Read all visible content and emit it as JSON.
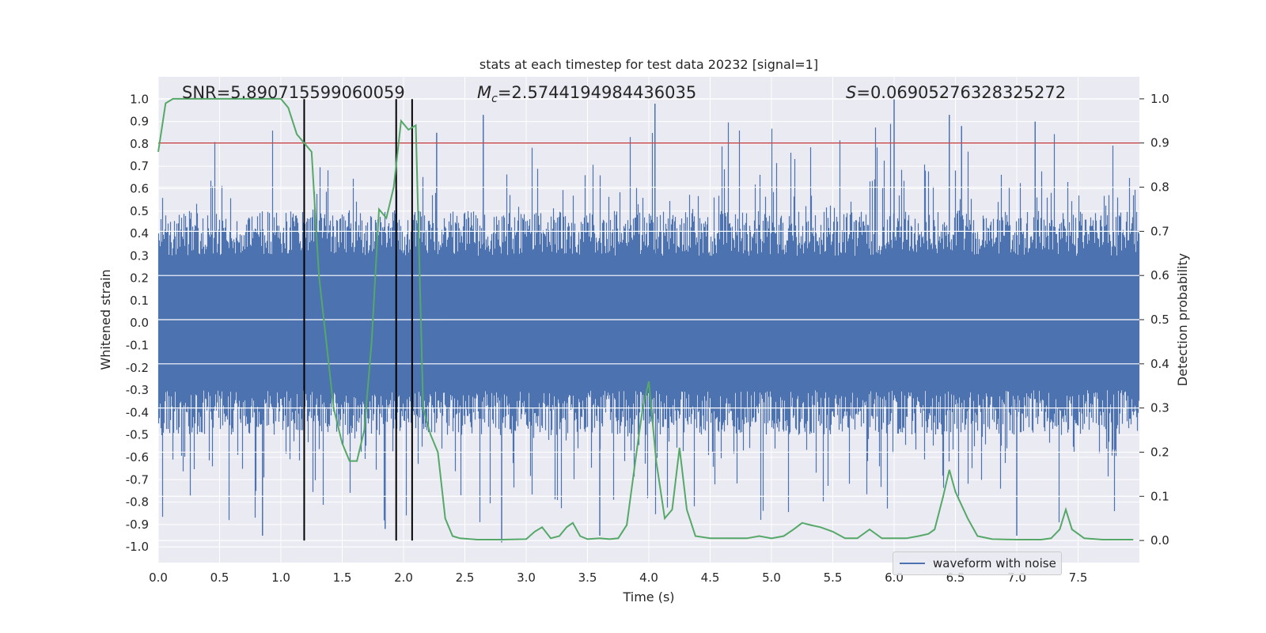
{
  "chart_data": {
    "type": "line",
    "title": "stats at each timestep for test data 20232 [signal=1]",
    "xlabel": "Time (s)",
    "ylabel_left": "Whitened strain",
    "ylabel_right": "Detection probability",
    "xlim": [
      0.0,
      8.0
    ],
    "ylim_left": [
      -1.07,
      1.1
    ],
    "ylim_right": [
      -0.05,
      1.05
    ],
    "x_ticks": [
      "0.0",
      "0.5",
      "1.0",
      "1.5",
      "2.0",
      "2.5",
      "3.0",
      "3.5",
      "4.0",
      "4.5",
      "5.0",
      "5.5",
      "6.0",
      "6.5",
      "7.0",
      "7.5"
    ],
    "y_ticks_left": [
      "1.0",
      "0.9",
      "0.8",
      "0.7",
      "0.6",
      "0.5",
      "0.4",
      "0.3",
      "0.2",
      "0.1",
      "0.0",
      "-0.1",
      "-0.2",
      "-0.3",
      "-0.4",
      "-0.5",
      "-0.6",
      "-0.7",
      "-0.8",
      "-0.9",
      "-1.0"
    ],
    "y_ticks_right": [
      "1.0",
      "0.9",
      "0.8",
      "0.7",
      "0.6",
      "0.5",
      "0.4",
      "0.3",
      "0.2",
      "0.1",
      "0.0"
    ],
    "grid": true,
    "legend_position": "lower-right",
    "annotations": {
      "snr": "SNR=5.890715599060059",
      "mc_symbol": "M",
      "mc_subscript": "c",
      "mc_value": "=2.5744194984436035",
      "s_symbol": "S",
      "s_value": "=0.06905276328325272"
    },
    "threshold": 0.9,
    "vertical_lines_x": [
      1.19,
      1.94,
      2.07
    ],
    "series": [
      {
        "name": "waveform with noise",
        "color": "#4c72b0",
        "envelope": "dense noise, bulk within ±0.35, spikes to about ±0.7, peaks near 1.0 at 6.0 s"
      },
      {
        "color": "#55a868",
        "x": [
          0.0,
          0.06,
          0.12,
          0.2,
          0.3,
          0.4,
          0.5,
          0.6,
          0.7,
          0.8,
          0.9,
          0.95,
          1.0,
          1.06,
          1.13,
          1.19,
          1.25,
          1.31,
          1.37,
          1.43,
          1.5,
          1.56,
          1.62,
          1.68,
          1.74,
          1.8,
          1.86,
          1.92,
          1.98,
          2.04,
          2.1,
          2.16,
          2.22,
          2.28,
          2.34,
          2.4,
          2.46,
          2.6,
          2.8,
          3.0,
          3.07,
          3.13,
          3.2,
          3.27,
          3.33,
          3.38,
          3.44,
          3.5,
          3.6,
          3.68,
          3.75,
          3.82,
          3.9,
          3.95,
          4.0,
          4.06,
          4.13,
          4.19,
          4.25,
          4.31,
          4.38,
          4.5,
          4.65,
          4.8,
          4.9,
          5.0,
          5.1,
          5.18,
          5.25,
          5.32,
          5.4,
          5.5,
          5.6,
          5.7,
          5.8,
          5.9,
          6.0,
          6.1,
          6.2,
          6.28,
          6.33,
          6.4,
          6.45,
          6.5,
          6.6,
          6.68,
          6.8,
          7.0,
          7.2,
          7.28,
          7.35,
          7.4,
          7.45,
          7.55,
          7.7,
          7.95
        ],
        "values": [
          0.88,
          0.99,
          1.0,
          1.0,
          1.0,
          1.0,
          1.0,
          1.0,
          1.0,
          1.0,
          1.0,
          1.0,
          1.0,
          0.98,
          0.92,
          0.9,
          0.88,
          0.6,
          0.45,
          0.3,
          0.22,
          0.18,
          0.18,
          0.25,
          0.45,
          0.75,
          0.73,
          0.8,
          0.95,
          0.93,
          0.94,
          0.3,
          0.24,
          0.2,
          0.05,
          0.01,
          0.005,
          0.002,
          0.002,
          0.003,
          0.02,
          0.03,
          0.005,
          0.01,
          0.03,
          0.04,
          0.01,
          0.003,
          0.005,
          0.003,
          0.005,
          0.035,
          0.2,
          0.3,
          0.36,
          0.18,
          0.05,
          0.07,
          0.21,
          0.07,
          0.01,
          0.005,
          0.005,
          0.005,
          0.01,
          0.005,
          0.01,
          0.025,
          0.04,
          0.035,
          0.03,
          0.02,
          0.005,
          0.005,
          0.025,
          0.005,
          0.005,
          0.005,
          0.01,
          0.015,
          0.025,
          0.1,
          0.16,
          0.11,
          0.05,
          0.01,
          0.003,
          0.002,
          0.002,
          0.005,
          0.025,
          0.07,
          0.025,
          0.005,
          0.002,
          0.002
        ]
      }
    ]
  }
}
